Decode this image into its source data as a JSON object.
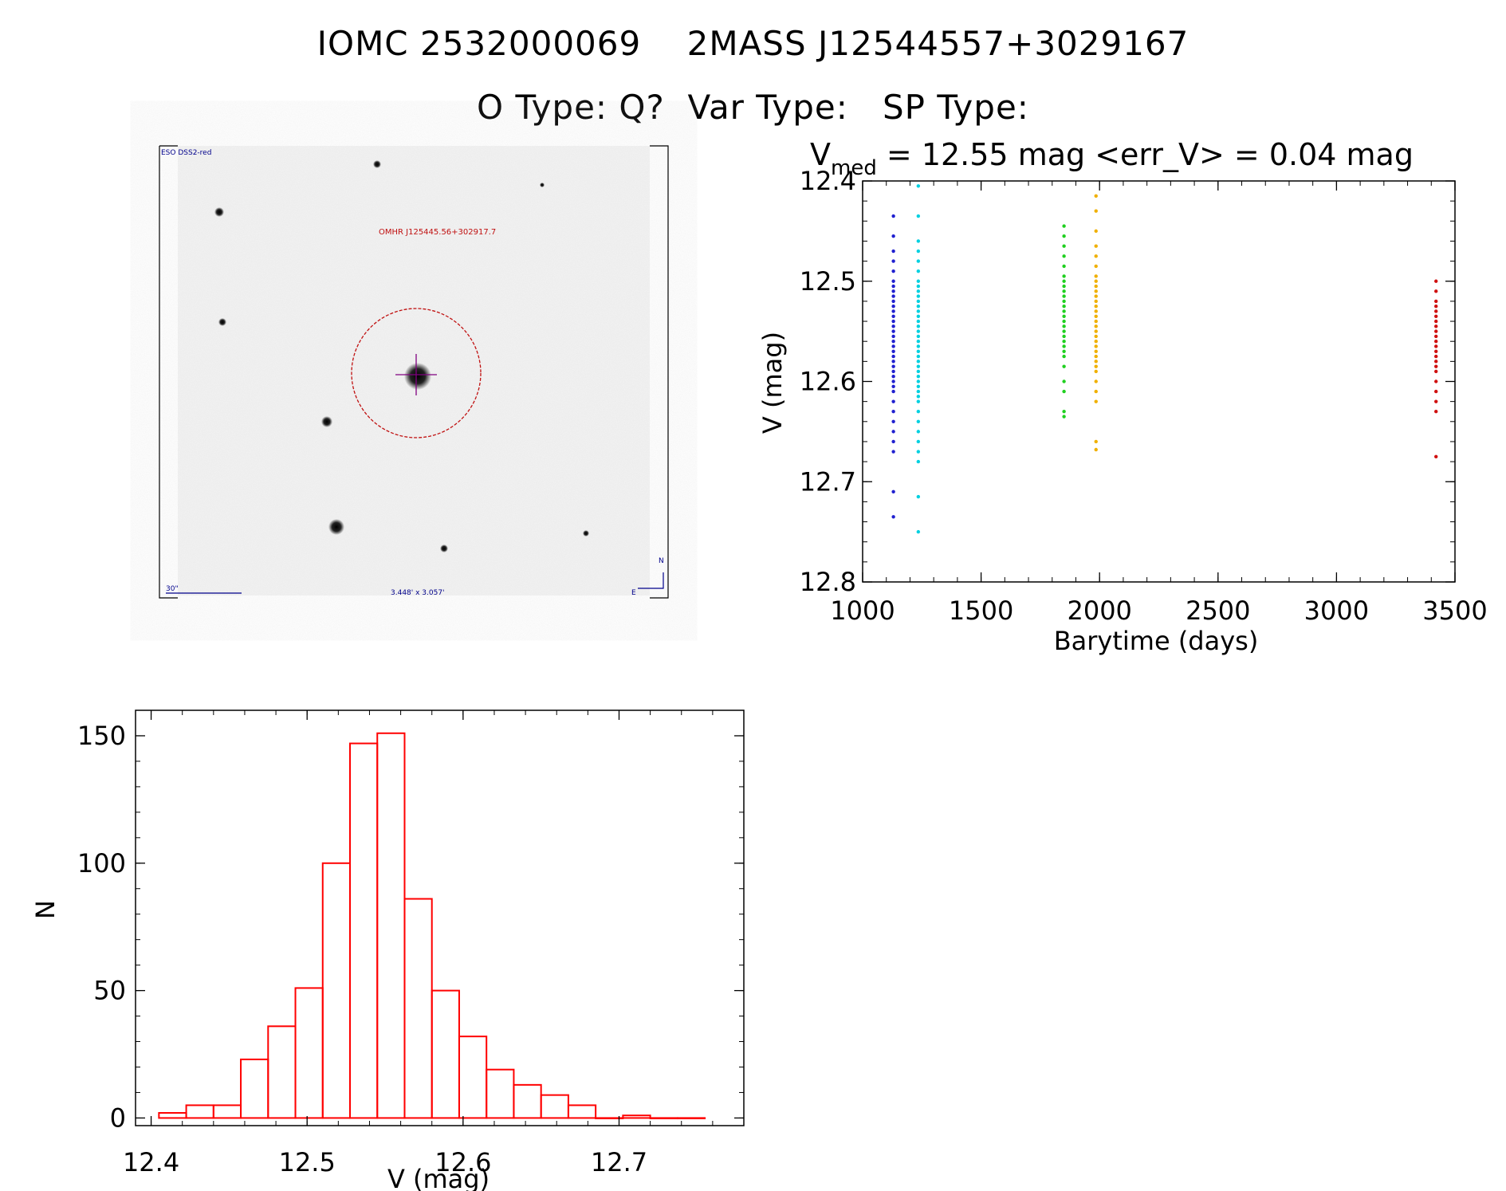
{
  "header": {
    "title_line1": "IOMC 2532000069    2MASS J12544557+3029167",
    "title_line2": "O Type: Q?  Var Type:   SP Type:"
  },
  "finder_image": {
    "survey_label": "ESO DSS2-red",
    "target_label": "OMHR J125445.56+302917.7",
    "scale_label": "30\"",
    "fov_label": "3.448' x 3.057'",
    "north_label": "N",
    "east_label": "E",
    "colors": {
      "circle": "#c01010",
      "cross": "#800080",
      "labels": "#00008b",
      "target_label": "#c01010"
    }
  },
  "chart_data": [
    {
      "type": "scatter",
      "title_prefix": "V",
      "title_subscript": "med",
      "title_rest": " =  12.55 mag <err_V> =  0.04 mag",
      "xlabel": "Barytime (days)",
      "ylabel": "V (mag)",
      "xlim": [
        1000,
        3500
      ],
      "ylim": [
        12.8,
        12.4
      ],
      "y_inverted": true,
      "x_ticks": [
        "1000",
        "1500",
        "2000",
        "2500",
        "3000",
        "3500"
      ],
      "y_ticks": [
        "12.4",
        "12.5",
        "12.6",
        "12.7",
        "12.8"
      ],
      "series": [
        {
          "color": "#2020d0",
          "x": 1130,
          "points": [
            12.435,
            12.455,
            12.47,
            12.48,
            12.49,
            12.5,
            12.505,
            12.51,
            12.515,
            12.52,
            12.525,
            12.53,
            12.535,
            12.54,
            12.545,
            12.55,
            12.555,
            12.56,
            12.565,
            12.57,
            12.575,
            12.58,
            12.585,
            12.59,
            12.595,
            12.6,
            12.605,
            12.61,
            12.62,
            12.63,
            12.64,
            12.65,
            12.66,
            12.67,
            12.71,
            12.735
          ]
        },
        {
          "color": "#00d0e0",
          "x": 1235,
          "points": [
            12.405,
            12.435,
            12.46,
            12.47,
            12.48,
            12.49,
            12.5,
            12.505,
            12.51,
            12.515,
            12.52,
            12.525,
            12.53,
            12.535,
            12.54,
            12.545,
            12.55,
            12.555,
            12.56,
            12.565,
            12.57,
            12.575,
            12.58,
            12.585,
            12.59,
            12.595,
            12.6,
            12.605,
            12.61,
            12.615,
            12.62,
            12.63,
            12.64,
            12.65,
            12.66,
            12.67,
            12.68,
            12.715,
            12.75
          ]
        },
        {
          "color": "#20d020",
          "x": 1850,
          "points": [
            12.445,
            12.455,
            12.465,
            12.475,
            12.485,
            12.495,
            12.5,
            12.505,
            12.51,
            12.515,
            12.52,
            12.525,
            12.53,
            12.535,
            12.54,
            12.545,
            12.55,
            12.555,
            12.56,
            12.565,
            12.57,
            12.575,
            12.585,
            12.6,
            12.61,
            12.63,
            12.635
          ]
        },
        {
          "color": "#f0b000",
          "x": 1985,
          "points": [
            12.415,
            12.43,
            12.45,
            12.465,
            12.475,
            12.485,
            12.495,
            12.5,
            12.505,
            12.51,
            12.515,
            12.52,
            12.525,
            12.53,
            12.535,
            12.54,
            12.545,
            12.55,
            12.555,
            12.56,
            12.565,
            12.57,
            12.575,
            12.58,
            12.585,
            12.59,
            12.6,
            12.61,
            12.62,
            12.66,
            12.668
          ]
        },
        {
          "color": "#d01010",
          "x": 3420,
          "points": [
            12.5,
            12.51,
            12.52,
            12.525,
            12.53,
            12.535,
            12.54,
            12.545,
            12.55,
            12.555,
            12.56,
            12.565,
            12.57,
            12.575,
            12.58,
            12.585,
            12.59,
            12.6,
            12.61,
            12.62,
            12.63,
            12.675
          ]
        }
      ]
    },
    {
      "type": "bar",
      "xlabel": "V (mag)",
      "ylabel": "N",
      "xlim": [
        12.39,
        12.78
      ],
      "ylim": [
        -3,
        160
      ],
      "x_ticks": [
        "12.4",
        "12.5",
        "12.6",
        "12.7"
      ],
      "y_ticks": [
        "0",
        "50",
        "100",
        "150"
      ],
      "bar_color": "#ff0000",
      "bin_edges": [
        12.405,
        12.4225,
        12.44,
        12.4575,
        12.475,
        12.4925,
        12.51,
        12.5275,
        12.545,
        12.5625,
        12.58,
        12.5975,
        12.615,
        12.6325,
        12.65,
        12.6675,
        12.685,
        12.7025,
        12.72,
        12.7375,
        12.755
      ],
      "values": [
        2,
        5,
        5,
        23,
        36,
        51,
        100,
        147,
        151,
        86,
        50,
        32,
        19,
        13,
        9,
        5,
        0,
        1,
        0,
        0
      ]
    }
  ]
}
